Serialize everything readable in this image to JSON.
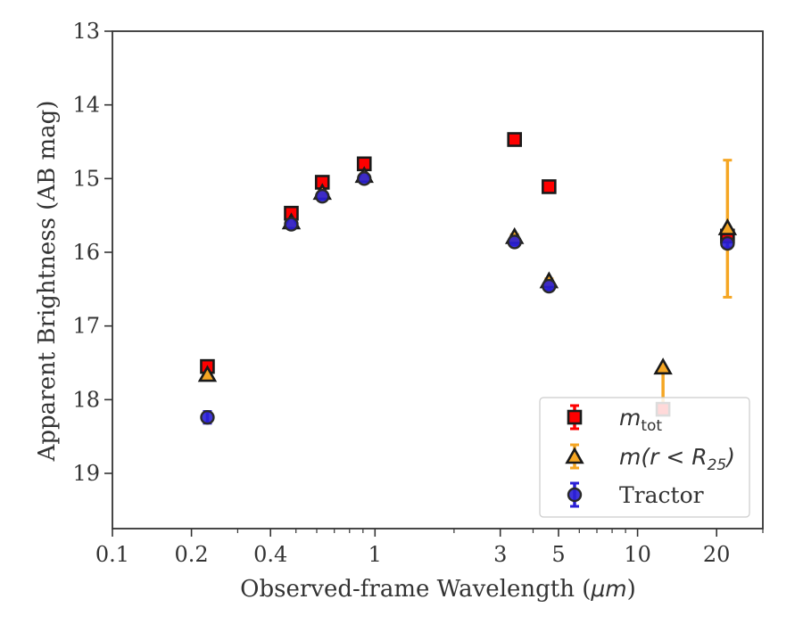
{
  "chart_data": {
    "type": "scatter",
    "xlabel_text": "Observed-frame Wavelength (",
    "xlabel_unit": "μm",
    "xlabel_close": ")",
    "ylabel": "Apparent Brightness (AB mag)",
    "xscale": "log",
    "xlim": [
      0.1,
      30
    ],
    "ylim": [
      19.75,
      13
    ],
    "y_inverted": true,
    "x_ticks": [
      0.1,
      0.2,
      0.4,
      1,
      3,
      5,
      10,
      20
    ],
    "x_tick_labels": [
      "0.1",
      "0.2",
      "0.4",
      "1",
      "3",
      "5",
      "10",
      "20"
    ],
    "y_ticks": [
      13,
      14,
      15,
      16,
      17,
      18,
      19
    ],
    "y_tick_labels": [
      "13",
      "14",
      "15",
      "16",
      "17",
      "18",
      "19"
    ],
    "grid": false,
    "legend_position": "bottom-right",
    "series": [
      {
        "name": "m_tot",
        "legend_main": "m",
        "legend_sub": "tot",
        "marker": "square",
        "color": "#ff0000",
        "edge_color": "#1a1a1a",
        "error_color": "#ff0000",
        "points": [
          {
            "x": 0.23,
            "y": 17.55,
            "err": 0.05
          },
          {
            "x": 0.48,
            "y": 15.47,
            "err": 0.04
          },
          {
            "x": 0.63,
            "y": 15.05,
            "err": 0.04
          },
          {
            "x": 0.91,
            "y": 14.8,
            "err": 0.04
          },
          {
            "x": 3.4,
            "y": 14.47,
            "err": 0.03
          },
          {
            "x": 4.6,
            "y": 15.11,
            "err": 0.04
          },
          {
            "x": 12.5,
            "y": 18.13,
            "err": 0.05
          },
          {
            "x": 22.0,
            "y": 15.78,
            "err": 0.05
          }
        ]
      },
      {
        "name": "m(r < R_25)",
        "legend_main": "m(r < R",
        "legend_sub": "25",
        "legend_tail": ")",
        "marker": "triangle",
        "color": "#f5a623",
        "edge_color": "#1a1a1a",
        "error_color": "#f5a623",
        "points": [
          {
            "x": 0.23,
            "y": 17.67,
            "err": 0.05
          },
          {
            "x": 0.48,
            "y": 15.6,
            "err": 0.04
          },
          {
            "x": 0.63,
            "y": 15.2,
            "err": 0.04
          },
          {
            "x": 0.91,
            "y": 14.97,
            "err": 0.04
          },
          {
            "x": 3.4,
            "y": 15.8,
            "err": 0.04
          },
          {
            "x": 4.6,
            "y": 16.4,
            "err": 0.04
          },
          {
            "x": 12.5,
            "y": 17.57,
            "err_up": 0,
            "err_down": 0.55
          },
          {
            "x": 22.0,
            "y": 15.68,
            "err": 0.93
          }
        ]
      },
      {
        "name": "Tractor",
        "legend_main": "Tractor",
        "marker": "circle",
        "color": "#2a1fd6",
        "edge_color": "#2a2a2a",
        "error_color": "#2a1fd6",
        "points": [
          {
            "x": 0.23,
            "y": 18.24,
            "err": 0.08
          },
          {
            "x": 0.48,
            "y": 15.62,
            "err": 0.04
          },
          {
            "x": 0.63,
            "y": 15.24,
            "err": 0.04
          },
          {
            "x": 0.91,
            "y": 15.0,
            "err": 0.04
          },
          {
            "x": 3.4,
            "y": 15.86,
            "err": 0.04
          },
          {
            "x": 4.6,
            "y": 16.46,
            "err": 0.05
          },
          {
            "x": 22.0,
            "y": 15.88,
            "err": 0.06
          }
        ]
      }
    ]
  }
}
